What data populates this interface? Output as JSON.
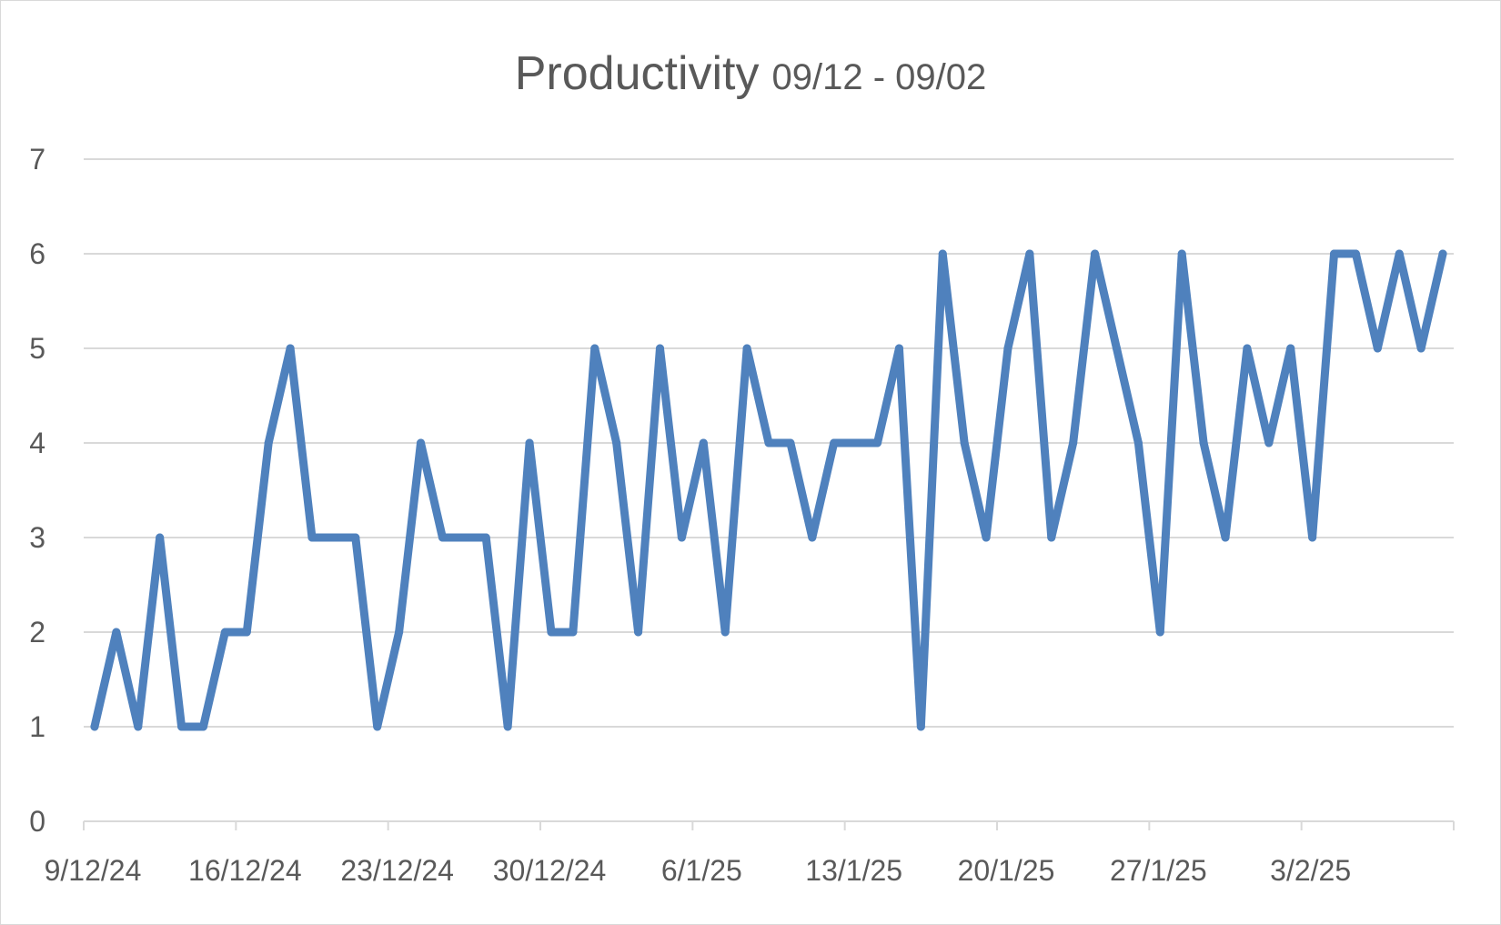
{
  "chart_data": {
    "type": "line",
    "title": "Productivity",
    "subtitle": "09/12 - 09/02",
    "xlabel": "",
    "ylabel": "",
    "ylim": [
      0,
      7
    ],
    "yticks": [
      0,
      1,
      2,
      3,
      4,
      5,
      6,
      7
    ],
    "xlim": [
      "2024-12-09",
      "2025-02-10"
    ],
    "x_tick_labels": [
      "9/12/24",
      "16/12/24",
      "23/12/24",
      "30/12/24",
      "6/1/25",
      "13/1/25",
      "20/1/25",
      "27/1/25",
      "3/2/25"
    ],
    "grid": true,
    "legend": "none",
    "color": "#4F81BD",
    "x": [
      "2024-12-09",
      "2024-12-10",
      "2024-12-11",
      "2024-12-12",
      "2024-12-13",
      "2024-12-14",
      "2024-12-15",
      "2024-12-16",
      "2024-12-17",
      "2024-12-18",
      "2024-12-19",
      "2024-12-20",
      "2024-12-21",
      "2024-12-22",
      "2024-12-23",
      "2024-12-24",
      "2024-12-25",
      "2024-12-26",
      "2024-12-27",
      "2024-12-28",
      "2024-12-29",
      "2024-12-30",
      "2024-12-31",
      "2025-01-01",
      "2025-01-02",
      "2025-01-03",
      "2025-01-04",
      "2025-01-05",
      "2025-01-06",
      "2025-01-07",
      "2025-01-08",
      "2025-01-09",
      "2025-01-10",
      "2025-01-11",
      "2025-01-12",
      "2025-01-13",
      "2025-01-14",
      "2025-01-15",
      "2025-01-16",
      "2025-01-17",
      "2025-01-18",
      "2025-01-19",
      "2025-01-20",
      "2025-01-21",
      "2025-01-22",
      "2025-01-23",
      "2025-01-24",
      "2025-01-25",
      "2025-01-26",
      "2025-01-27",
      "2025-01-28",
      "2025-01-29",
      "2025-01-30",
      "2025-01-31",
      "2025-02-01",
      "2025-02-02",
      "2025-02-03",
      "2025-02-04",
      "2025-02-05",
      "2025-02-06",
      "2025-02-07",
      "2025-02-08",
      "2025-02-09"
    ],
    "values": [
      1,
      2,
      1,
      3,
      1,
      1,
      2,
      2,
      4,
      5,
      3,
      3,
      3,
      1,
      2,
      4,
      3,
      3,
      3,
      1,
      4,
      2,
      2,
      5,
      4,
      2,
      5,
      3,
      4,
      2,
      5,
      4,
      4,
      3,
      4,
      4,
      4,
      5,
      1,
      6,
      4,
      3,
      5,
      6,
      3,
      4,
      6,
      5,
      4,
      2,
      6,
      4,
      3,
      5,
      4,
      5,
      3,
      6,
      6,
      5,
      6,
      5,
      6
    ]
  }
}
